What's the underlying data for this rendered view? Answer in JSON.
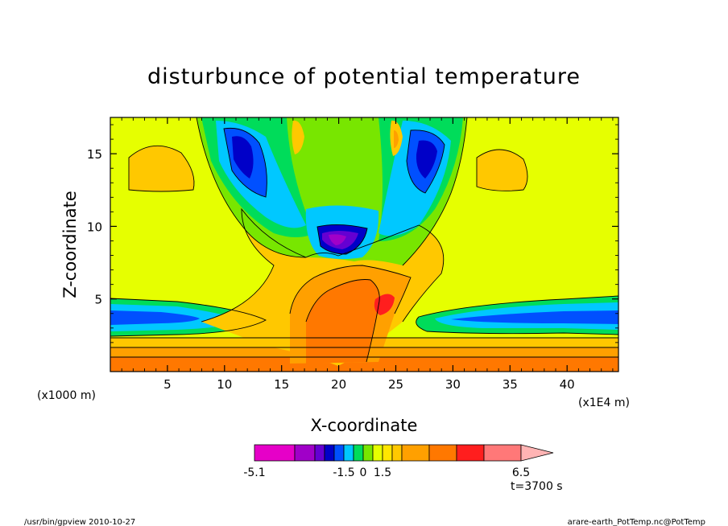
{
  "chart_data": {
    "type": "heatmap",
    "title": "disturbunce of potential temperature",
    "xlabel": "X-coordinate",
    "ylabel": "Z-coordinate",
    "x_unit_left": "(x1000 m)",
    "x_unit_right": "(x1E4 m)",
    "xlim": [
      0,
      44.5
    ],
    "ylim": [
      0,
      17.5
    ],
    "x_ticks": [
      "5",
      "10",
      "15",
      "20",
      "25",
      "30",
      "35",
      "40"
    ],
    "y_ticks": [
      "5",
      "10",
      "15"
    ],
    "x_tick_values": [
      5,
      10,
      15,
      20,
      25,
      30,
      35,
      40
    ],
    "y_tick_values": [
      5,
      10,
      15
    ],
    "time_label": "t=3700 s",
    "colorbar": {
      "colors": [
        "#e600c8",
        "#a000c8",
        "#6400d2",
        "#0000c8",
        "#0050ff",
        "#00c8ff",
        "#00dc5a",
        "#78e600",
        "#e6ff00",
        "#ffe600",
        "#ffc800",
        "#ffa000",
        "#ff7800",
        "#ff1e1e",
        "#ff7878",
        "#ffb4b4"
      ],
      "labels": [
        "-5.1",
        "-1.5",
        "0",
        "1.5",
        "6.5"
      ],
      "label_positions": [
        0,
        5,
        7,
        9,
        15
      ]
    }
  },
  "footer": {
    "left": "/usr/bin/gpview   2010-10-27",
    "right": "arare-earth_PotTemp.nc@PotTemp"
  }
}
